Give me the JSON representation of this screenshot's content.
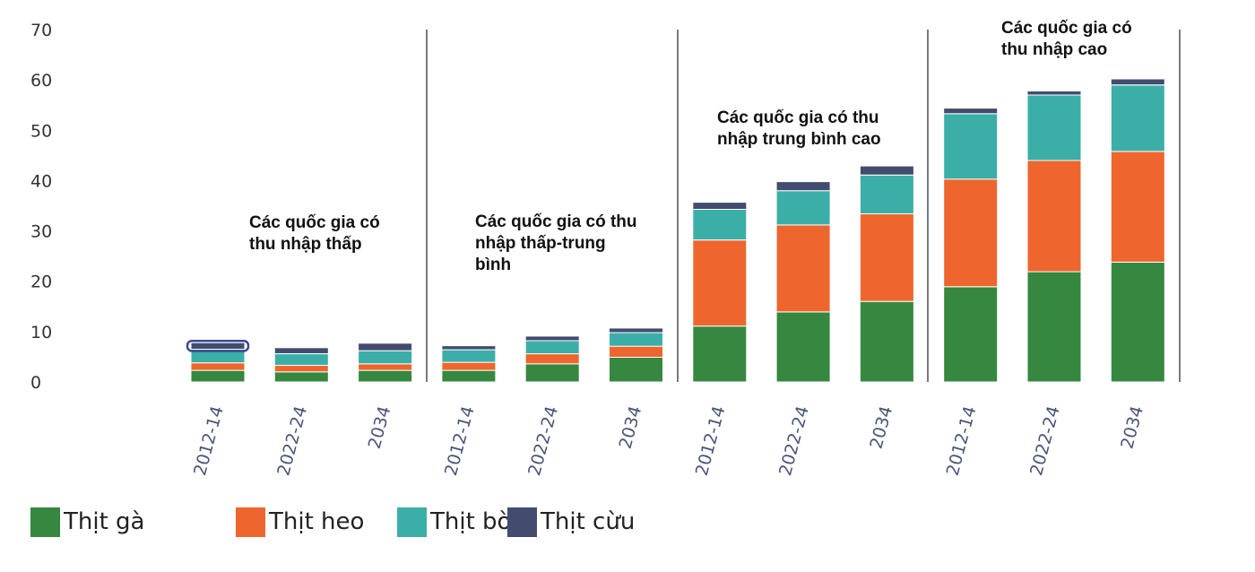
{
  "chart_data": {
    "type": "bar",
    "stacked": true,
    "ylim": [
      0,
      70
    ],
    "yticks": [
      0,
      10,
      20,
      30,
      40,
      50,
      60,
      70
    ],
    "grid": false,
    "legend_position": "bottom-left",
    "groups": [
      {
        "label": [
          "Các quốc gia có",
          "thu nhập thấp"
        ],
        "categories": [
          "2012-14",
          "2022-24",
          "2034"
        ],
        "series": [
          {
            "name": "Thịt gà",
            "values": [
              2.3,
              2.0,
              2.3
            ]
          },
          {
            "name": "Thịt heo",
            "values": [
              1.5,
              1.3,
              1.3
            ]
          },
          {
            "name": "Thịt bò",
            "values": [
              2.7,
              2.3,
              2.6
            ]
          },
          {
            "name": "Thịt cừu",
            "values": [
              1.3,
              1.2,
              1.5
            ]
          }
        ]
      },
      {
        "label": [
          "Các quốc gia có thu",
          "nhập thấp-trung",
          "bình"
        ],
        "categories": [
          "2012-14",
          "2022-24",
          "2034"
        ],
        "series": [
          {
            "name": "Thịt gà",
            "values": [
              2.3,
              3.6,
              4.9
            ]
          },
          {
            "name": "Thịt heo",
            "values": [
              1.6,
              2.0,
              2.2
            ]
          },
          {
            "name": "Thịt bò",
            "values": [
              2.5,
              2.6,
              2.7
            ]
          },
          {
            "name": "Thịt cừu",
            "values": [
              0.8,
              0.9,
              0.9
            ]
          }
        ]
      },
      {
        "label": [
          "Các quốc gia có thu",
          "nhập trung bình cao"
        ],
        "categories": [
          "2012-14",
          "2022-24",
          "2034"
        ],
        "series": [
          {
            "name": "Thịt gà",
            "values": [
              11.1,
              13.9,
              16.0
            ]
          },
          {
            "name": "Thịt heo",
            "values": [
              17.1,
              17.3,
              17.4
            ]
          },
          {
            "name": "Thịt bò",
            "values": [
              6.1,
              6.8,
              7.7
            ]
          },
          {
            "name": "Thịt cừu",
            "values": [
              1.4,
              1.8,
              1.8
            ]
          }
        ]
      },
      {
        "label": [
          "Các quốc gia có",
          "thu nhập cao"
        ],
        "categories": [
          "2012-14",
          "2022-24",
          "2034"
        ],
        "series": [
          {
            "name": "Thịt gà",
            "values": [
              18.9,
              21.9,
              23.8
            ]
          },
          {
            "name": "Thịt heo",
            "values": [
              21.4,
              22.1,
              22.0
            ]
          },
          {
            "name": "Thịt bò",
            "values": [
              13.0,
              13.0,
              13.2
            ]
          },
          {
            "name": "Thịt cừu",
            "values": [
              1.1,
              0.8,
              1.2
            ]
          }
        ]
      }
    ],
    "highlight": {
      "group": 0,
      "category": "2012-14",
      "series": "Thịt cừu"
    }
  },
  "legend": [
    {
      "label": "Thịt gà",
      "color": "#36873f"
    },
    {
      "label": "Thịt heo",
      "color": "#ee662e"
    },
    {
      "label": "Thịt bò",
      "color": "#3bafa7"
    },
    {
      "label": "Thịt cừu",
      "color": "#434c6f"
    }
  ],
  "colors": {
    "Thịt gà": "#36873f",
    "Thịt heo": "#ee662e",
    "Thịt bò": "#3bafa7",
    "Thịt cừu": "#434c6f",
    "highlight": "#3b4a8c"
  }
}
